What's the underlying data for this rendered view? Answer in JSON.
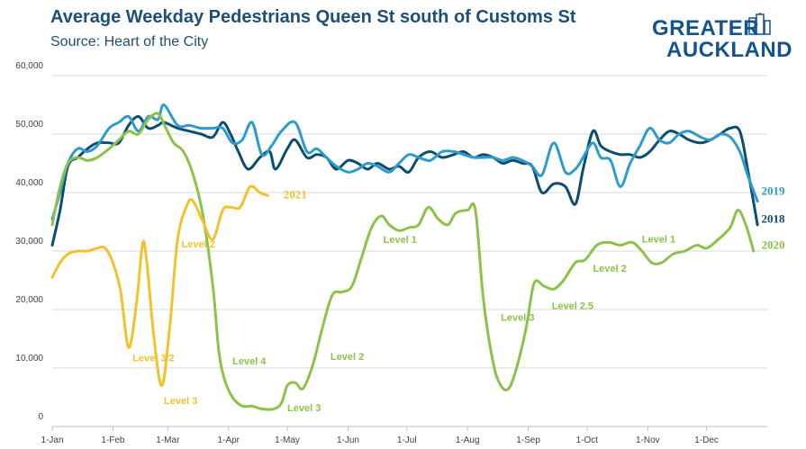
{
  "header": {
    "title": "Average Weekday Pedestrians Queen St south of Customs St",
    "subtitle": "Source: Heart of the City"
  },
  "logo": {
    "line1": "GREATER",
    "line2": "AUCKLAND"
  },
  "colors": {
    "s2018": "#0d4e6e",
    "s2019": "#2d9bcc",
    "s2020": "#8dc24a",
    "s2021": "#f2c12e",
    "grid": "#d9d9d9"
  },
  "chart_data": {
    "type": "line",
    "title": "Average Weekday Pedestrians Queen St south of Customs St",
    "subtitle": "Source: Heart of the City",
    "xlabel": "",
    "ylabel": "",
    "xlim": [
      0,
      365
    ],
    "ylim": [
      0,
      60000
    ],
    "grid": {
      "x": false,
      "y": true
    },
    "x_ticks": [
      {
        "day": 0,
        "label": "1-Jan"
      },
      {
        "day": 31,
        "label": "1-Feb"
      },
      {
        "day": 59,
        "label": "1-Mar"
      },
      {
        "day": 90,
        "label": "1-Apr"
      },
      {
        "day": 120,
        "label": "1-May"
      },
      {
        "day": 151,
        "label": "1-Jun"
      },
      {
        "day": 181,
        "label": "1-Jul"
      },
      {
        "day": 212,
        "label": "1-Aug"
      },
      {
        "day": 243,
        "label": "1-Sep"
      },
      {
        "day": 273,
        "label": "1-Oct"
      },
      {
        "day": 304,
        "label": "1-Nov"
      },
      {
        "day": 334,
        "label": "1-Dec"
      }
    ],
    "y_ticks": [
      {
        "value": 0,
        "label": "0"
      },
      {
        "value": 10000,
        "label": "10,000"
      },
      {
        "value": 20000,
        "label": "20,000"
      },
      {
        "value": 30000,
        "label": "30,000"
      },
      {
        "value": 40000,
        "label": "40,000"
      },
      {
        "value": 50000,
        "label": "50,000"
      },
      {
        "value": 60000,
        "label": "60,000"
      }
    ],
    "series": [
      {
        "name": "2018",
        "points": [
          [
            0,
            31000
          ],
          [
            4,
            37000
          ],
          [
            8,
            44500
          ],
          [
            13,
            46000
          ],
          [
            18,
            47500
          ],
          [
            23,
            48500
          ],
          [
            29,
            48500
          ],
          [
            34,
            48500
          ],
          [
            39,
            51500
          ],
          [
            44,
            53000
          ],
          [
            49,
            51000
          ],
          [
            54,
            51500
          ],
          [
            57,
            52000
          ],
          [
            64,
            51000
          ],
          [
            70,
            50500
          ],
          [
            76,
            50000
          ],
          [
            82,
            49500
          ],
          [
            87,
            52000
          ],
          [
            91,
            50000
          ],
          [
            95,
            47000
          ],
          [
            100,
            44000
          ],
          [
            106,
            46000
          ],
          [
            111,
            47000
          ],
          [
            114,
            44000
          ],
          [
            120,
            47500
          ],
          [
            124,
            49000
          ],
          [
            130,
            46000
          ],
          [
            135,
            46500
          ],
          [
            140,
            46000
          ],
          [
            145,
            44000
          ],
          [
            151,
            45500
          ],
          [
            156,
            45000
          ],
          [
            161,
            44000
          ],
          [
            166,
            45000
          ],
          [
            172,
            44000
          ],
          [
            177,
            44500
          ],
          [
            182,
            43500
          ],
          [
            187,
            46000
          ],
          [
            193,
            47000
          ],
          [
            199,
            46000
          ],
          [
            205,
            46500
          ],
          [
            210,
            47000
          ],
          [
            215,
            46000
          ],
          [
            220,
            46500
          ],
          [
            225,
            46000
          ],
          [
            230,
            45000
          ],
          [
            235,
            45500
          ],
          [
            240,
            45000
          ],
          [
            245,
            44500
          ],
          [
            250,
            40000
          ],
          [
            256,
            41500
          ],
          [
            262,
            41000
          ],
          [
            267,
            38000
          ],
          [
            271,
            44000
          ],
          [
            276,
            50500
          ],
          [
            280,
            48000
          ],
          [
            285,
            47000
          ],
          [
            290,
            46500
          ],
          [
            295,
            46500
          ],
          [
            300,
            46000
          ],
          [
            305,
            47000
          ],
          [
            310,
            49000
          ],
          [
            315,
            50500
          ],
          [
            320,
            50000
          ],
          [
            325,
            49000
          ],
          [
            331,
            48500
          ],
          [
            336,
            49000
          ],
          [
            341,
            50000
          ],
          [
            346,
            51000
          ],
          [
            351,
            50500
          ],
          [
            355,
            44000
          ],
          [
            360,
            34500
          ]
        ]
      },
      {
        "name": "2019",
        "points": [
          [
            0,
            35500
          ],
          [
            4,
            40000
          ],
          [
            8,
            45000
          ],
          [
            13,
            47500
          ],
          [
            18,
            47000
          ],
          [
            23,
            48000
          ],
          [
            29,
            51000
          ],
          [
            34,
            52000
          ],
          [
            39,
            53000
          ],
          [
            44,
            50500
          ],
          [
            49,
            53000
          ],
          [
            54,
            52500
          ],
          [
            57,
            55000
          ],
          [
            64,
            51500
          ],
          [
            70,
            51500
          ],
          [
            76,
            51000
          ],
          [
            82,
            51000
          ],
          [
            87,
            51000
          ],
          [
            92,
            48500
          ],
          [
            97,
            49000
          ],
          [
            102,
            52000
          ],
          [
            107,
            46500
          ],
          [
            112,
            48000
          ],
          [
            117,
            50500
          ],
          [
            124,
            52000
          ],
          [
            130,
            47000
          ],
          [
            135,
            47500
          ],
          [
            140,
            46000
          ],
          [
            145,
            44500
          ],
          [
            151,
            43500
          ],
          [
            156,
            44000
          ],
          [
            161,
            45000
          ],
          [
            166,
            44500
          ],
          [
            172,
            43500
          ],
          [
            177,
            45000
          ],
          [
            182,
            46500
          ],
          [
            187,
            46000
          ],
          [
            193,
            45500
          ],
          [
            199,
            47000
          ],
          [
            205,
            47000
          ],
          [
            210,
            46500
          ],
          [
            215,
            46000
          ],
          [
            220,
            46000
          ],
          [
            225,
            46000
          ],
          [
            230,
            45500
          ],
          [
            235,
            46000
          ],
          [
            240,
            45500
          ],
          [
            245,
            44500
          ],
          [
            250,
            43000
          ],
          [
            256,
            48500
          ],
          [
            262,
            43500
          ],
          [
            267,
            44000
          ],
          [
            271,
            46000
          ],
          [
            276,
            48500
          ],
          [
            280,
            46000
          ],
          [
            285,
            45500
          ],
          [
            290,
            41000
          ],
          [
            295,
            45000
          ],
          [
            300,
            48000
          ],
          [
            305,
            51000
          ],
          [
            310,
            49000
          ],
          [
            315,
            48500
          ],
          [
            320,
            50000
          ],
          [
            325,
            50500
          ],
          [
            331,
            49500
          ],
          [
            336,
            49000
          ],
          [
            341,
            50000
          ],
          [
            346,
            49500
          ],
          [
            351,
            47000
          ],
          [
            355,
            43000
          ],
          [
            360,
            38500
          ]
        ]
      },
      {
        "name": "2020",
        "points": [
          [
            0,
            34500
          ],
          [
            4,
            41000
          ],
          [
            8,
            45000
          ],
          [
            13,
            46000
          ],
          [
            18,
            45500
          ],
          [
            23,
            46000
          ],
          [
            29,
            47500
          ],
          [
            34,
            49000
          ],
          [
            39,
            50500
          ],
          [
            44,
            50000
          ],
          [
            49,
            52500
          ],
          [
            54,
            53500
          ],
          [
            58,
            51000
          ],
          [
            62,
            48500
          ],
          [
            67,
            47000
          ],
          [
            72,
            43000
          ],
          [
            77,
            36000
          ],
          [
            82,
            24000
          ],
          [
            85,
            13000
          ],
          [
            88,
            8000
          ],
          [
            92,
            5000
          ],
          [
            97,
            3500
          ],
          [
            102,
            3500
          ],
          [
            107,
            3000
          ],
          [
            113,
            3000
          ],
          [
            117,
            4000
          ],
          [
            120,
            7000
          ],
          [
            124,
            7500
          ],
          [
            128,
            6500
          ],
          [
            133,
            10500
          ],
          [
            138,
            17000
          ],
          [
            143,
            22500
          ],
          [
            148,
            23000
          ],
          [
            153,
            24000
          ],
          [
            158,
            29000
          ],
          [
            163,
            34000
          ],
          [
            168,
            36000
          ],
          [
            172,
            34500
          ],
          [
            177,
            33500
          ],
          [
            182,
            34000
          ],
          [
            187,
            34500
          ],
          [
            192,
            37500
          ],
          [
            197,
            35500
          ],
          [
            202,
            34500
          ],
          [
            206,
            36500
          ],
          [
            212,
            37000
          ],
          [
            216,
            37000
          ],
          [
            220,
            22000
          ],
          [
            225,
            11000
          ],
          [
            229,
            7000
          ],
          [
            233,
            6500
          ],
          [
            237,
            10000
          ],
          [
            242,
            17000
          ],
          [
            246,
            24500
          ],
          [
            251,
            24000
          ],
          [
            256,
            23500
          ],
          [
            261,
            25000
          ],
          [
            267,
            28000
          ],
          [
            272,
            28500
          ],
          [
            278,
            31000
          ],
          [
            284,
            31500
          ],
          [
            290,
            31000
          ],
          [
            296,
            31500
          ],
          [
            301,
            30000
          ],
          [
            306,
            28000
          ],
          [
            311,
            28000
          ],
          [
            317,
            29500
          ],
          [
            323,
            30000
          ],
          [
            329,
            31000
          ],
          [
            334,
            30500
          ],
          [
            340,
            32000
          ],
          [
            346,
            34000
          ],
          [
            350,
            37000
          ],
          [
            354,
            34500
          ],
          [
            358,
            30000
          ]
        ]
      },
      {
        "name": "2021",
        "points": [
          [
            0,
            25500
          ],
          [
            4,
            28000
          ],
          [
            8,
            29500
          ],
          [
            13,
            30000
          ],
          [
            18,
            30000
          ],
          [
            23,
            30500
          ],
          [
            27,
            30500
          ],
          [
            31,
            28000
          ],
          [
            35,
            23000
          ],
          [
            39,
            13500
          ],
          [
            43,
            21000
          ],
          [
            46,
            31000
          ],
          [
            48,
            29000
          ],
          [
            52,
            15000
          ],
          [
            56,
            7000
          ],
          [
            60,
            17000
          ],
          [
            64,
            32000
          ],
          [
            69,
            38000
          ],
          [
            72,
            38500
          ],
          [
            77,
            35000
          ],
          [
            82,
            32000
          ],
          [
            87,
            37000
          ],
          [
            91,
            37500
          ],
          [
            96,
            37500
          ],
          [
            101,
            41000
          ],
          [
            106,
            40000
          ],
          [
            110,
            39500
          ]
        ]
      }
    ],
    "series_labels": [
      {
        "series": "2018",
        "text": "2018",
        "x": 362,
        "y": 35500
      },
      {
        "series": "2019",
        "text": "2019",
        "x": 362,
        "y": 40200
      },
      {
        "series": "2020",
        "text": "2020",
        "x": 362,
        "y": 31000
      },
      {
        "series": "2021",
        "text": "2021",
        "x": 118,
        "y": 39600
      }
    ],
    "annotations": [
      {
        "series": "2021",
        "text": "Level 2",
        "x": 66,
        "y": 31200
      },
      {
        "series": "2021",
        "text": "Level 3/2",
        "x": 41,
        "y": 11800
      },
      {
        "series": "2021",
        "text": "Level 3",
        "x": 57,
        "y": 4500
      },
      {
        "series": "2020",
        "text": "Level 4",
        "x": 92,
        "y": 11200
      },
      {
        "series": "2020",
        "text": "Level 3",
        "x": 120,
        "y": 3200
      },
      {
        "series": "2020",
        "text": "Level 2",
        "x": 142,
        "y": 12000
      },
      {
        "series": "2020",
        "text": "Level 1",
        "x": 169,
        "y": 32000
      },
      {
        "series": "2020",
        "text": "Level 3",
        "x": 229,
        "y": 18700
      },
      {
        "series": "2020",
        "text": "Level 2.5",
        "x": 255,
        "y": 20700
      },
      {
        "series": "2020",
        "text": "Level 2",
        "x": 276,
        "y": 27100
      },
      {
        "series": "2020",
        "text": "Level 1",
        "x": 301,
        "y": 32100
      }
    ]
  }
}
